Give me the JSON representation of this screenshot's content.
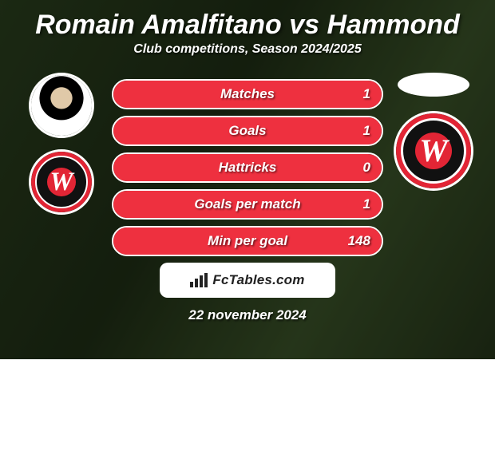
{
  "title": {
    "player1": "Romain Amalfitano",
    "vs": "vs",
    "player2": "Hammond",
    "color": "#ffffff",
    "fontsize": 34
  },
  "subtitle": "Club competitions, Season 2024/2025",
  "date": "22 november 2024",
  "footer_brand": "FcTables.com",
  "colors": {
    "card_overlay": "rgba(0,0,0,0.35)",
    "pill_border": "#ffffff",
    "text": "#ffffff",
    "fill_color": "#ee303f",
    "badge_outer": "#e22535",
    "badge_ring_dark": "#111111",
    "badge_ring_light": "#ffffff",
    "badge_inner": "#e22535",
    "badge_w": "#ffffff",
    "footer_bg": "#ffffff",
    "footer_text": "#222222"
  },
  "stats": [
    {
      "label": "Matches",
      "value": "1",
      "fill_pct": 100
    },
    {
      "label": "Goals",
      "value": "1",
      "fill_pct": 100
    },
    {
      "label": "Hattricks",
      "value": "0",
      "fill_pct": 100
    },
    {
      "label": "Goals per match",
      "value": "1",
      "fill_pct": 100
    },
    {
      "label": "Min per goal",
      "value": "148",
      "fill_pct": 100
    }
  ],
  "left_side": {
    "avatar_size": 82,
    "badge_size": 82
  },
  "right_side": {
    "blank_oval": true,
    "badge_size": 100
  }
}
